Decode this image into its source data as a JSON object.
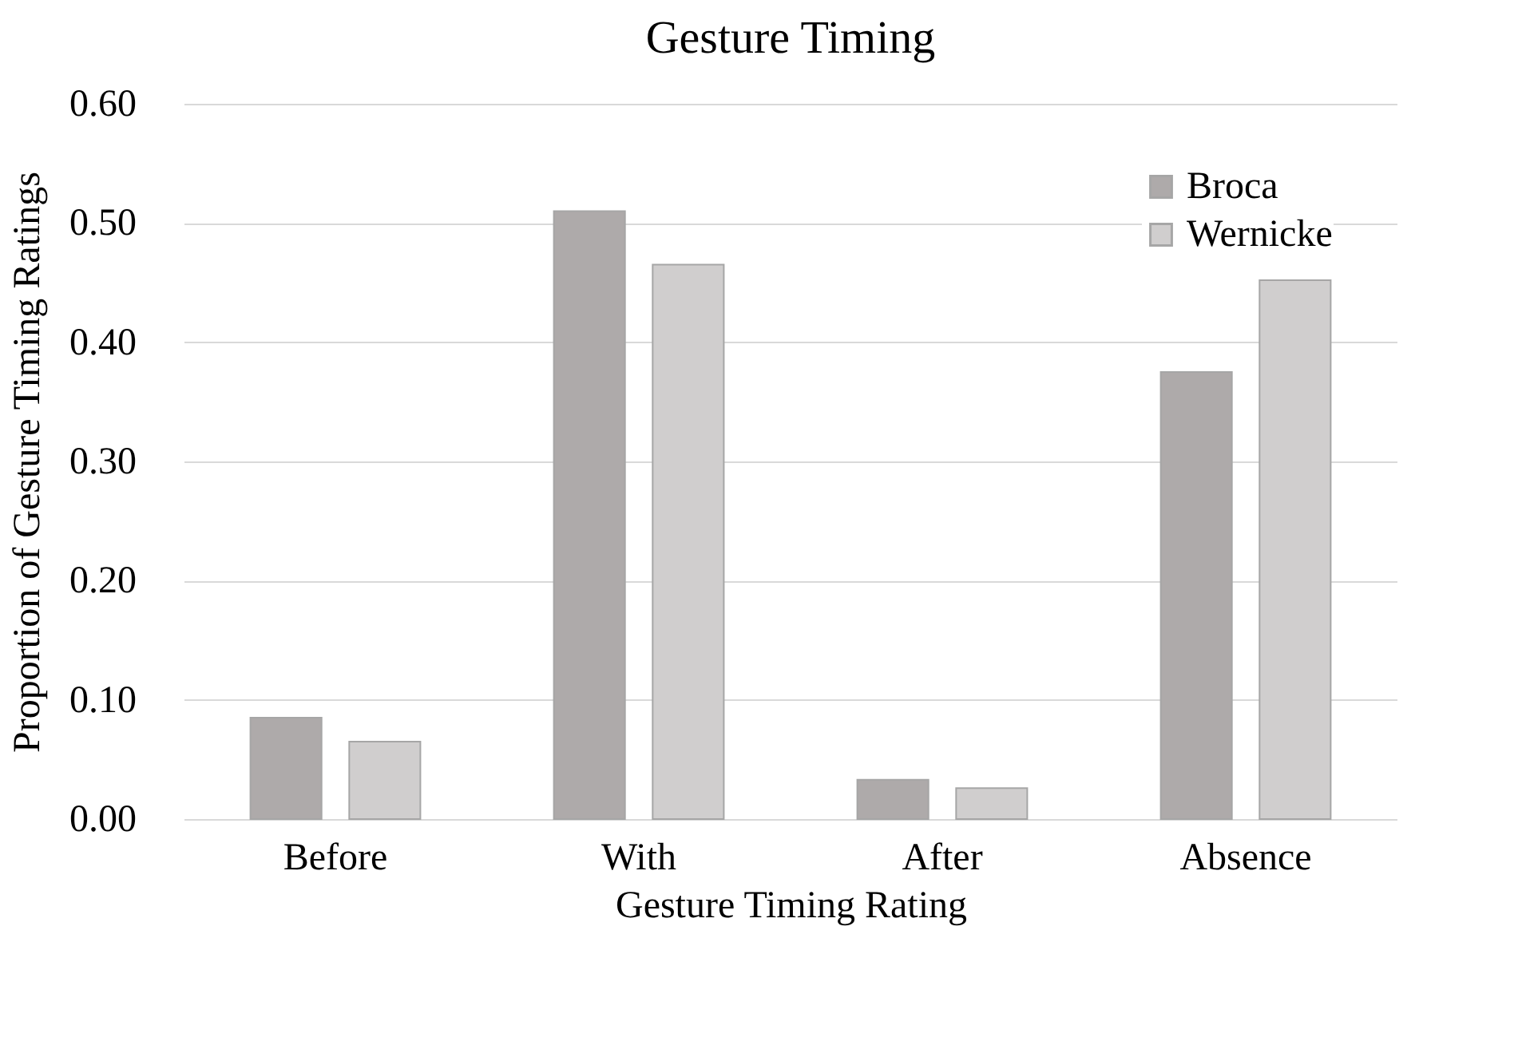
{
  "chart_data": {
    "type": "bar",
    "title": "Gesture Timing",
    "xlabel": "Gesture Timing Rating",
    "ylabel": "Proportion of Gesture Timing Ratings",
    "categories": [
      "Before",
      "With",
      "After",
      "Absence"
    ],
    "series": [
      {
        "name": "Broca",
        "color": "#aeaaaa",
        "values": [
          0.085,
          0.51,
          0.033,
          0.375
        ]
      },
      {
        "name": "Wernicke",
        "color": "#d0cece",
        "values": [
          0.065,
          0.465,
          0.026,
          0.452
        ]
      }
    ],
    "ylim": [
      0,
      0.6
    ],
    "yticks": [
      {
        "value": 0,
        "label": "0.00"
      },
      {
        "value": 0.1,
        "label": "0.10"
      },
      {
        "value": 0.2,
        "label": "0.20"
      },
      {
        "value": 0.3,
        "label": "0.30"
      },
      {
        "value": 0.4,
        "label": "0.40"
      },
      {
        "value": 0.5,
        "label": "0.50"
      },
      {
        "value": 0.6,
        "label": "0.60"
      }
    ],
    "grid": "y",
    "legend": "top right"
  }
}
